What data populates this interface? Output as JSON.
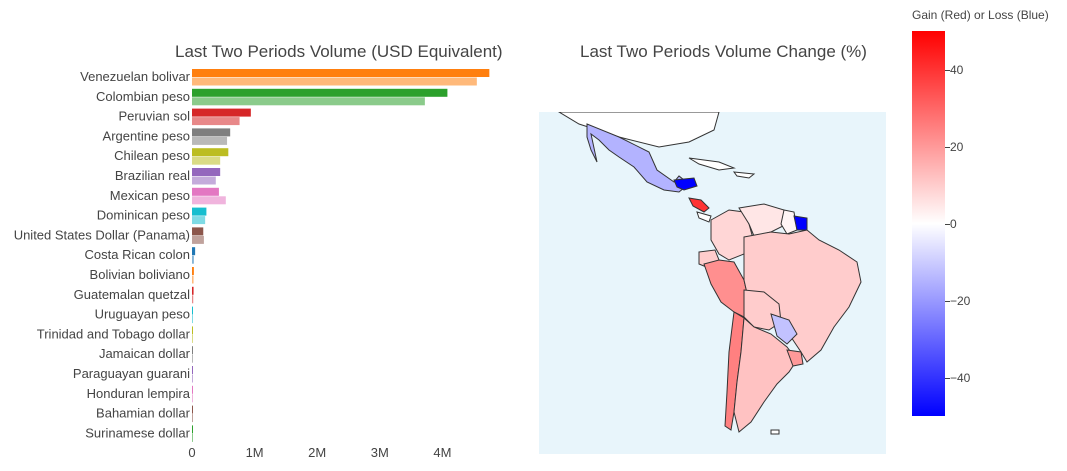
{
  "bar_title": "Last Two Periods Volume (USD Equivalent)",
  "map_title": "Last Two Periods Volume Change (%)",
  "colorbar": {
    "title": "Gain (Red) or Loss (Blue)",
    "range": [
      -50,
      50
    ],
    "ticks": [
      "40",
      "20",
      "0",
      "−20",
      "−40"
    ],
    "tick_values": [
      40,
      20,
      0,
      -20,
      -40
    ],
    "colors": {
      "high": "#ff0000",
      "mid": "#ffffff",
      "low": "#0000ff"
    }
  },
  "chart_data": [
    {
      "type": "bar",
      "orientation": "horizontal",
      "title": "Last Two Periods Volume (USD Equivalent)",
      "categories": [
        "Venezuelan bolivar",
        "Colombian peso",
        "Peruvian sol",
        "Argentine peso",
        "Chilean peso",
        "Brazilian real",
        "Mexican peso",
        "Dominican peso",
        "United States Dollar (Panama)",
        "Costa Rican colon",
        "Bolivian boliviano",
        "Guatemalan quetzal",
        "Uruguayan peso",
        "Trinidad and Tobago dollar",
        "Jamaican dollar",
        "Paraguayan guarani",
        "Honduran lempira",
        "Bahamian dollar",
        "Surinamese dollar"
      ],
      "series": [
        {
          "values": [
            4750000,
            4080000,
            940000,
            610000,
            580000,
            450000,
            430000,
            230000,
            180000,
            50000,
            30000,
            25000,
            15000,
            8000,
            5000,
            3000,
            2000,
            1000,
            800
          ]
        },
        {
          "values": [
            4550000,
            3720000,
            760000,
            560000,
            450000,
            380000,
            540000,
            210000,
            190000,
            30000,
            25000,
            20000,
            10000,
            6000,
            4000,
            2000,
            1500,
            800,
            500
          ]
        }
      ],
      "colors": [
        "#ff7f0e",
        "#2ca02c",
        "#d62728",
        "#7f7f7f",
        "#bcbd22",
        "#9467bd",
        "#e377c2",
        "#17becf",
        "#8c564b",
        "#1f77b4",
        "#ff7f0e",
        "#d62728",
        "#17becf",
        "#bcbd22",
        "#7f7f7f",
        "#9467bd",
        "#e377c2",
        "#8c564b",
        "#2ca02c"
      ],
      "xticks": [
        "0",
        "1M",
        "2M",
        "3M",
        "4M"
      ],
      "xtick_values": [
        0,
        1000000,
        2000000,
        3000000,
        4000000
      ],
      "xlim": [
        0,
        5000000
      ]
    },
    {
      "type": "choropleth",
      "title": "Last Two Periods Volume Change (%)",
      "regions": [
        {
          "name": "Mexico",
          "value": -15
        },
        {
          "name": "Honduras",
          "value": -50
        },
        {
          "name": "Nicaragua",
          "value": 40
        },
        {
          "name": "Colombia",
          "value": 8
        },
        {
          "name": "Venezuela",
          "value": 5
        },
        {
          "name": "Guyana",
          "value": 2
        },
        {
          "name": "Suriname",
          "value": -50
        },
        {
          "name": "Peru",
          "value": 22
        },
        {
          "name": "Brazil",
          "value": 10
        },
        {
          "name": "Bolivia",
          "value": 10
        },
        {
          "name": "Paraguay",
          "value": -12
        },
        {
          "name": "Chile",
          "value": 25
        },
        {
          "name": "Argentina",
          "value": 12
        },
        {
          "name": "Uruguay",
          "value": 20
        },
        {
          "name": "Ecuador",
          "value": 10
        }
      ]
    }
  ]
}
